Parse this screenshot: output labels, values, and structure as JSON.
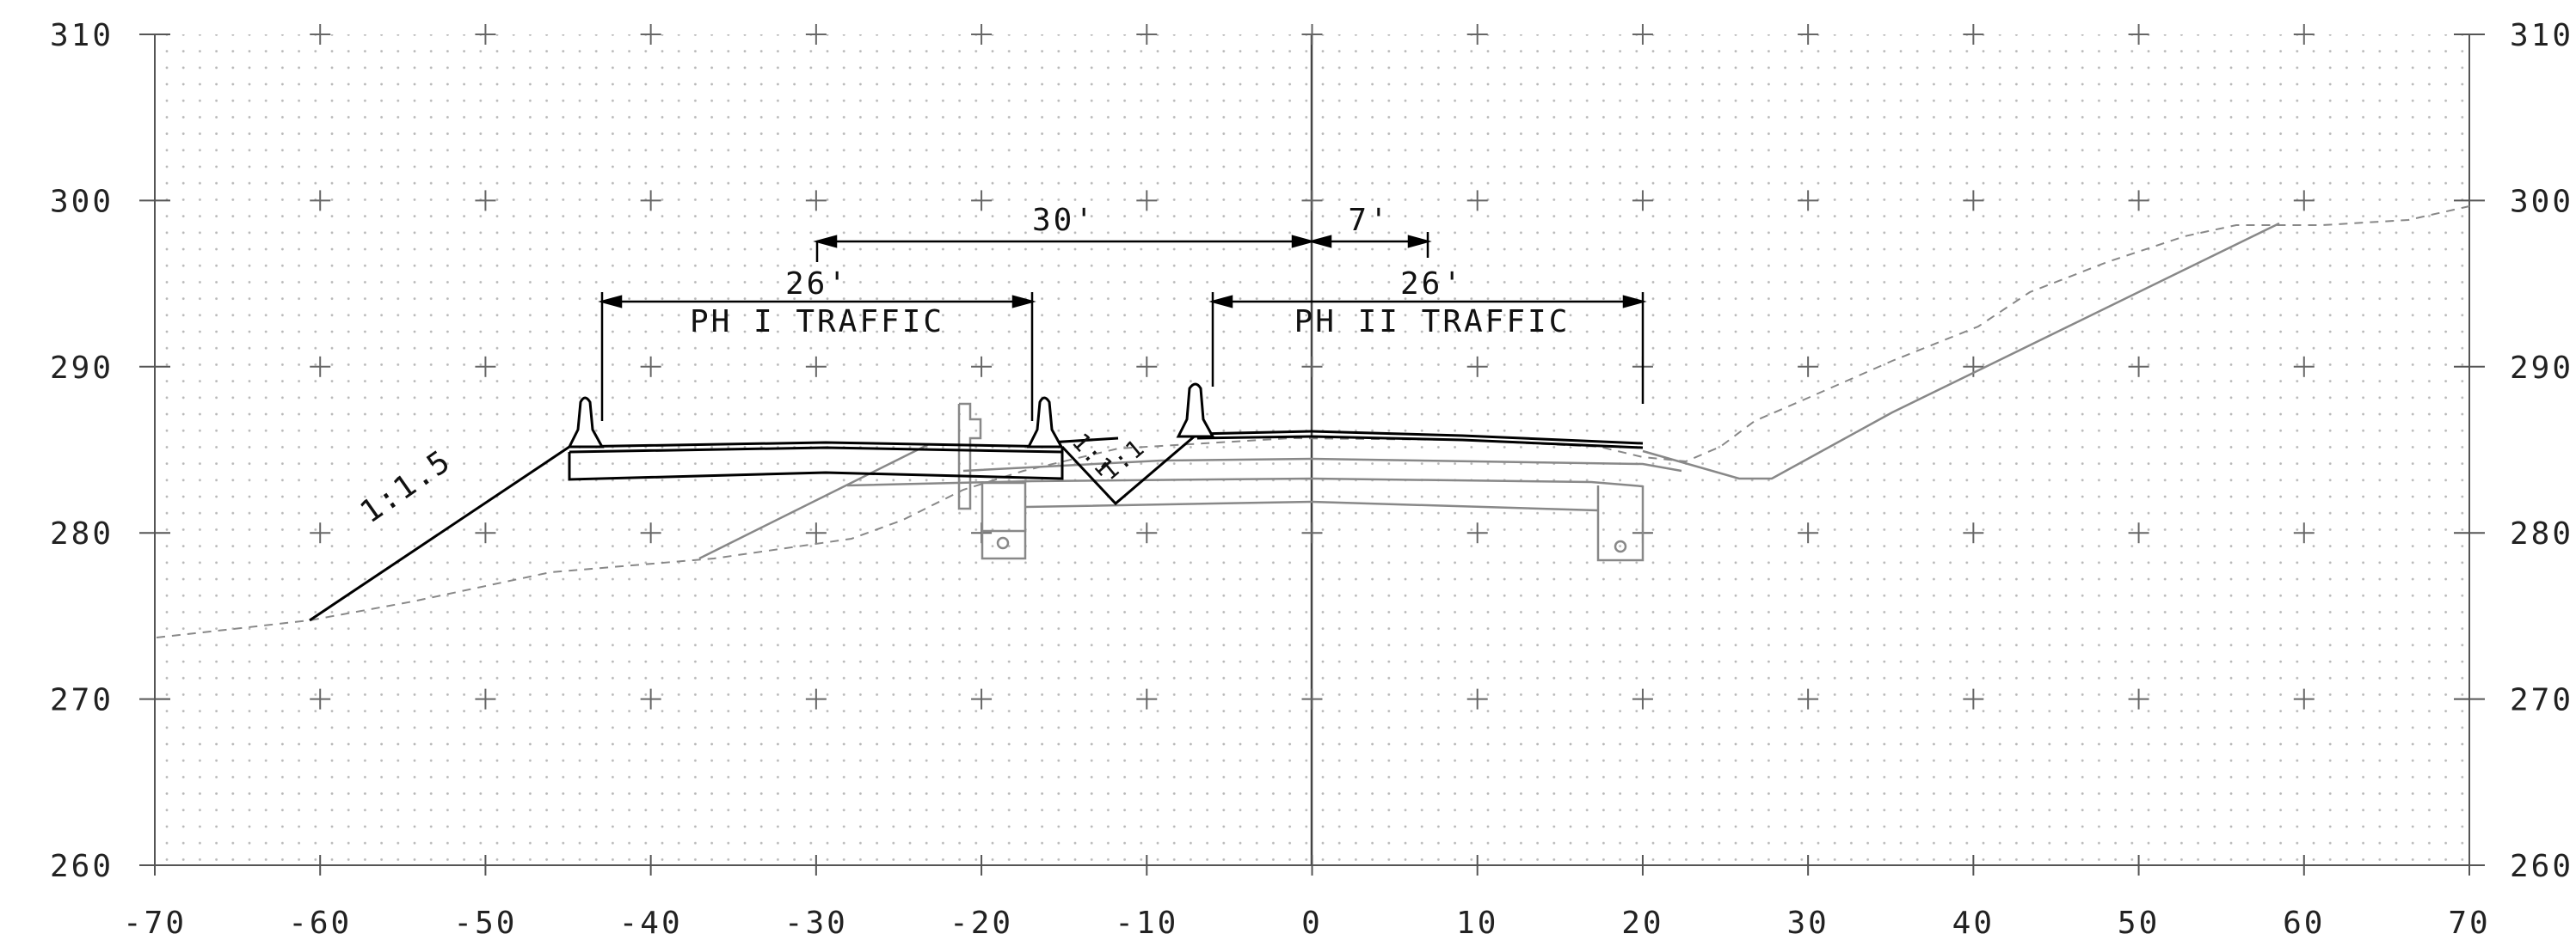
{
  "axes": {
    "x": {
      "min": -70,
      "max": 70,
      "step": 10,
      "tick_labels": [
        "-70",
        "-60",
        "-50",
        "-40",
        "-30",
        "-20",
        "-10",
        "0",
        "10",
        "20",
        "30",
        "40",
        "50",
        "60",
        "70"
      ]
    },
    "y": {
      "min": 260,
      "max": 310,
      "step": 10,
      "tick_labels": [
        "260",
        "270",
        "280",
        "290",
        "300",
        "310"
      ]
    },
    "dot_grid": true,
    "grid_crosses": true
  },
  "dimensions": {
    "span_30": {
      "label": "30'",
      "from": -30,
      "to": 0
    },
    "span_7": {
      "label": "7'",
      "from": 0,
      "to": 7
    },
    "phase1": {
      "width_label": "26'",
      "name": "PH I TRAFFIC",
      "from": -43,
      "to": -17
    },
    "phase2": {
      "width_label": "26'",
      "name": "PH II TRAFFIC",
      "from": -6,
      "to": 20
    }
  },
  "slope_labels": {
    "left_fill": "1:1.5",
    "ditch_left": "1:1",
    "ditch_right": "1:1"
  },
  "colors": {
    "proposed": "#000000",
    "existing": "#888888",
    "grid": "#555555",
    "dots": "#b0b0b0"
  }
}
